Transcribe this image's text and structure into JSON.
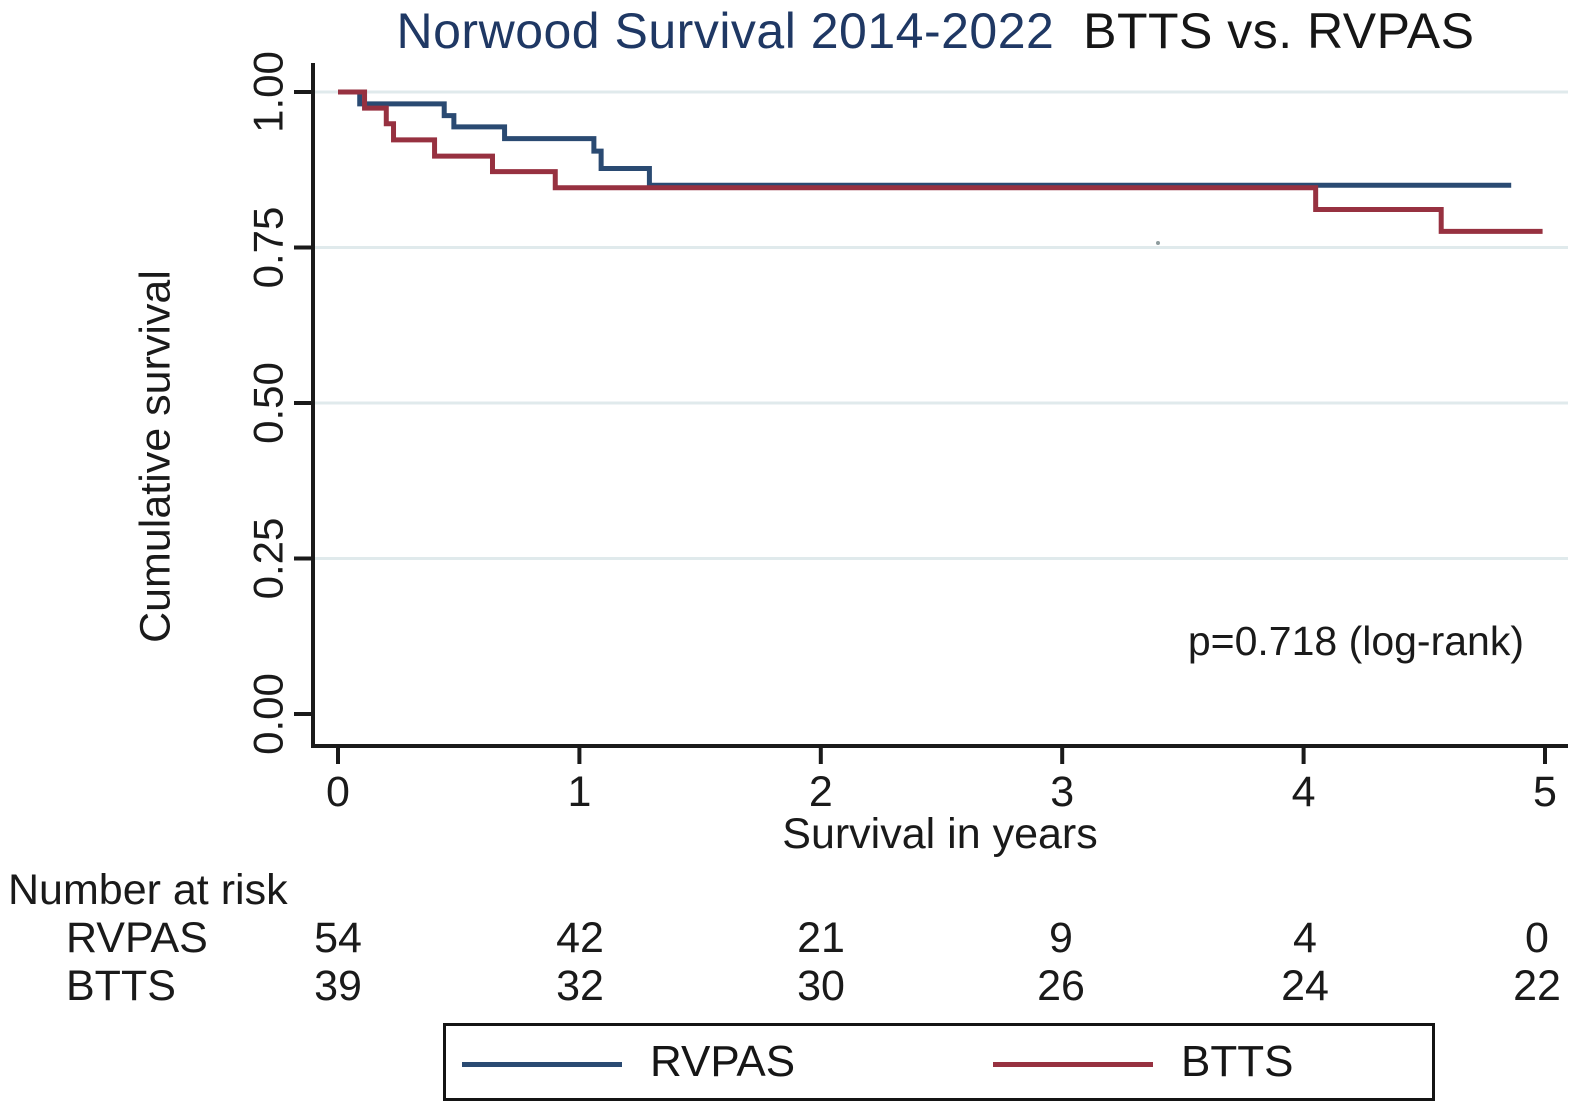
{
  "title": {
    "main": "Norwood Survival 2014-2022",
    "suffix": "  BTTS vs. RVPAS"
  },
  "colors": {
    "title_accent": "#1f3864",
    "text": "#1a1a1a",
    "axis": "#1a1a1a",
    "grid": "#e0eaec",
    "rvpas": "#2a4a72",
    "btts": "#973140"
  },
  "chart_data": {
    "type": "line",
    "subtype": "kaplan_meier_step",
    "title": "Norwood Survival 2014-2022 BTTS vs. RVPAS",
    "xlabel": "Survival in years",
    "ylabel": "Cumulative survival",
    "xlim": [
      0,
      5
    ],
    "ylim": [
      0.0,
      1.0
    ],
    "grid": "horizontal-light",
    "legend_position": "bottom",
    "annotation": {
      "text": "p=0.718 (log-rank)"
    },
    "xticks": [
      {
        "label": "0",
        "value": 0
      },
      {
        "label": "1",
        "value": 1
      },
      {
        "label": "2",
        "value": 2
      },
      {
        "label": "3",
        "value": 3
      },
      {
        "label": "4",
        "value": 4
      },
      {
        "label": "5",
        "value": 5
      }
    ],
    "yticks": [
      {
        "label": "1.00",
        "value": 1.0
      },
      {
        "label": "0.75",
        "value": 0.75
      },
      {
        "label": "0.50",
        "value": 0.5
      },
      {
        "label": "0.25",
        "value": 0.25
      },
      {
        "label": "0.00",
        "value": 0.0
      }
    ],
    "series": [
      {
        "name": "RVPAS",
        "color": "#2a4a72",
        "steps": [
          [
            0.0,
            1.0
          ],
          [
            0.09,
            0.981
          ],
          [
            0.44,
            0.962
          ],
          [
            0.48,
            0.944
          ],
          [
            0.69,
            0.925
          ],
          [
            1.06,
            0.905
          ],
          [
            1.09,
            0.877
          ],
          [
            1.29,
            0.85
          ]
        ],
        "end_time": 4.86
      },
      {
        "name": "BTTS",
        "color": "#973140",
        "steps": [
          [
            0.0,
            1.0
          ],
          [
            0.11,
            0.974
          ],
          [
            0.2,
            0.949
          ],
          [
            0.23,
            0.923
          ],
          [
            0.4,
            0.897
          ],
          [
            0.64,
            0.872
          ],
          [
            0.9,
            0.846
          ],
          [
            4.05,
            0.811
          ],
          [
            4.57,
            0.776
          ]
        ],
        "end_time": 4.99
      }
    ],
    "number_at_risk": {
      "header": "Number at risk",
      "times": [
        0,
        1,
        2,
        3,
        4,
        5
      ],
      "groups": [
        {
          "name": "RVPAS",
          "counts": [
            54,
            42,
            21,
            9,
            4,
            0
          ]
        },
        {
          "name": "BTTS",
          "counts": [
            39,
            32,
            30,
            26,
            24,
            22
          ]
        }
      ]
    }
  }
}
